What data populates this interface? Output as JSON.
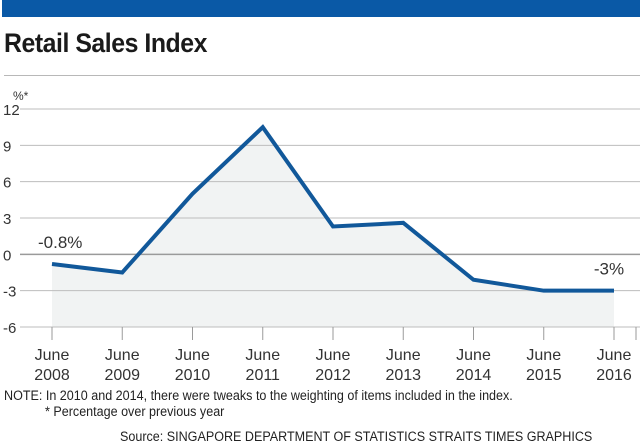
{
  "header": {
    "title": "Retail Sales Index",
    "accent_color": "#0a59a6"
  },
  "chart_data": {
    "type": "area",
    "title": "Retail Sales Index",
    "ylabel": "%*",
    "xlabel": "",
    "categories": [
      [
        "June",
        "2008"
      ],
      [
        "June",
        "2009"
      ],
      [
        "June",
        "2010"
      ],
      [
        "June",
        "2011"
      ],
      [
        "June",
        "2012"
      ],
      [
        "June",
        "2013"
      ],
      [
        "June",
        "2014"
      ],
      [
        "June",
        "2015"
      ],
      [
        "June",
        "2016"
      ]
    ],
    "values": [
      -0.8,
      -1.5,
      5.0,
      10.5,
      2.3,
      2.6,
      -2.1,
      -3.0,
      -3.0
    ],
    "ylim": [
      -6,
      12
    ],
    "yticks": [
      "12",
      "9",
      "6",
      "3",
      "0",
      "-3",
      "-6"
    ],
    "ytick_values": [
      12,
      9,
      6,
      3,
      0,
      -3,
      -6
    ],
    "grid": true,
    "line_color": "#11589a",
    "fill_color": "#f1f3f3",
    "annotations": [
      {
        "index": 0,
        "text": "-0.8%"
      },
      {
        "index": 8,
        "text": "-3%"
      }
    ]
  },
  "footer": {
    "note": "NOTE: In 2010 and 2014, there were tweaks to the weighting of items included in the index.",
    "footnote": "* Percentage over previous year",
    "source": "Source: SINGAPORE DEPARTMENT OF STATISTICS   STRAITS TIMES GRAPHICS"
  }
}
